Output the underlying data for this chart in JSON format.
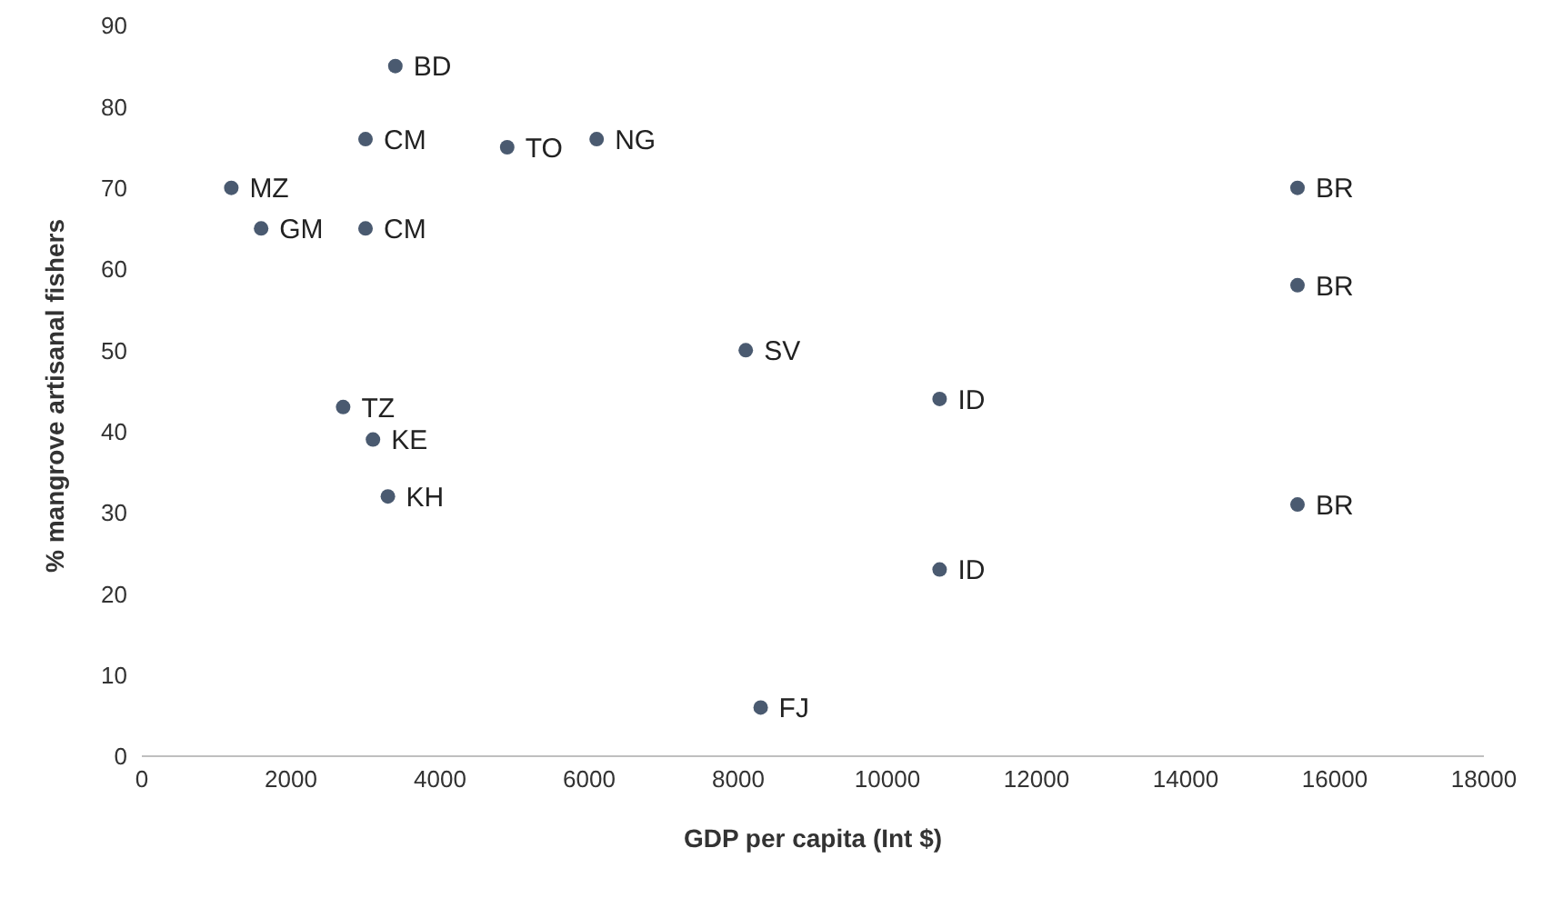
{
  "chart_data": {
    "type": "scatter",
    "xlabel": "GDP per capita (Int $)",
    "ylabel": "% mangrove artisanal fishers",
    "x": [
      3400,
      3000,
      4900,
      6100,
      1200,
      1600,
      3000,
      15500,
      15500,
      15500,
      8100,
      10700,
      10700,
      2700,
      3100,
      3300,
      8300
    ],
    "values": [
      85,
      76,
      75,
      76,
      70,
      65,
      65,
      70,
      58,
      31,
      50,
      44,
      23,
      43,
      39,
      32,
      6
    ],
    "color": "#4a5a70",
    "marker": "circle",
    "grid": false,
    "xlim": [
      0,
      18000
    ],
    "xticks": [
      0,
      2000,
      4000,
      6000,
      8000,
      10000,
      12000,
      14000,
      16000,
      18000
    ],
    "ylim": [
      0,
      90
    ],
    "yticks": [
      0,
      10,
      20,
      30,
      40,
      50,
      60,
      70,
      80,
      90
    ],
    "annotations": [
      {
        "text": "BD",
        "x": 3400,
        "y": 85
      },
      {
        "text": "CM",
        "x": 3000,
        "y": 76
      },
      {
        "text": "TO",
        "x": 4900,
        "y": 75
      },
      {
        "text": "NG",
        "x": 6100,
        "y": 76
      },
      {
        "text": "MZ",
        "x": 1200,
        "y": 70
      },
      {
        "text": "GM",
        "x": 1600,
        "y": 65
      },
      {
        "text": "CM",
        "x": 3000,
        "y": 65
      },
      {
        "text": "BR",
        "x": 15500,
        "y": 70
      },
      {
        "text": "BR",
        "x": 15500,
        "y": 58
      },
      {
        "text": "BR",
        "x": 15500,
        "y": 31
      },
      {
        "text": "SV",
        "x": 8100,
        "y": 50
      },
      {
        "text": "ID",
        "x": 10700,
        "y": 44
      },
      {
        "text": "ID",
        "x": 10700,
        "y": 23
      },
      {
        "text": "TZ",
        "x": 2700,
        "y": 43
      },
      {
        "text": "KE",
        "x": 3100,
        "y": 39
      },
      {
        "text": "KH",
        "x": 3300,
        "y": 32
      },
      {
        "text": "FJ",
        "x": 8300,
        "y": 6
      }
    ]
  }
}
